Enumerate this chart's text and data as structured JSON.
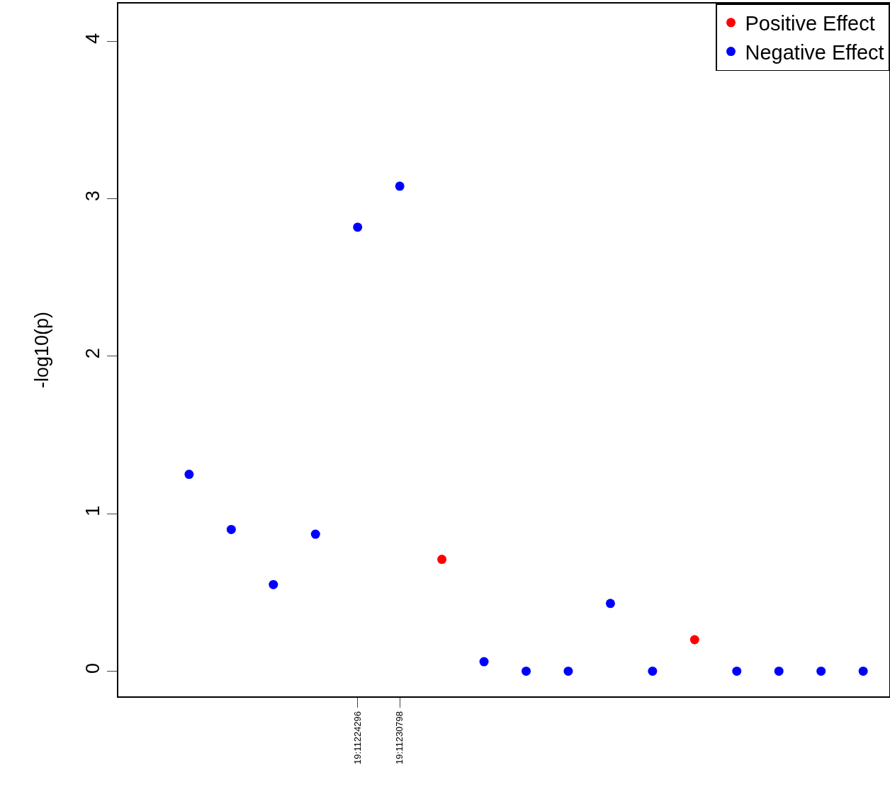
{
  "chart_data": {
    "type": "scatter",
    "ylabel": "-log10(p)",
    "categories": [
      null,
      null,
      null,
      null,
      "19:11224296",
      "19:11230798",
      null,
      null,
      null,
      null,
      null,
      null,
      null,
      null,
      null,
      null,
      null
    ],
    "series": [
      {
        "name": "Positive Effect",
        "color": "#ff0000",
        "values": [
          null,
          null,
          null,
          null,
          null,
          null,
          0.71,
          null,
          null,
          null,
          null,
          null,
          0.2,
          null,
          null,
          null,
          null
        ]
      },
      {
        "name": "Negative Effect",
        "color": "#0000ff",
        "values": [
          1.25,
          0.9,
          0.55,
          0.87,
          2.82,
          3.08,
          null,
          0.06,
          0,
          0,
          0.43,
          0,
          null,
          0,
          0,
          0,
          0
        ]
      }
    ],
    "ylim": [
      -0.16,
      4.24
    ],
    "yticks": [
      0,
      1,
      2,
      3,
      4
    ],
    "grid": false,
    "legend": "top right",
    "marker": "circle"
  }
}
